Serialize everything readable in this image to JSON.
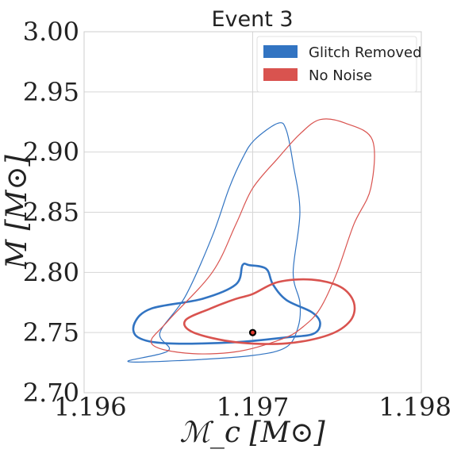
{
  "chart_data": {
    "type": "contour",
    "title": "Event 3",
    "xlabel": "ℳ_c [M⊙]",
    "ylabel": "M [M⊙]",
    "xlim": [
      1.196,
      1.198
    ],
    "ylim": [
      2.7,
      3.0
    ],
    "xticks": [
      "1.196",
      "1.197",
      "1.198"
    ],
    "yticks": [
      "2.70",
      "2.75",
      "2.80",
      "2.85",
      "2.90",
      "2.95",
      "3.00"
    ],
    "grid": true,
    "legend_position": "top-right",
    "series": [
      {
        "name": "Glitch Removed",
        "color": "#3274c2",
        "contours": [
          {
            "level": "outer",
            "points": [
              [
                1.19715,
                2.924
              ],
              [
                1.1972,
                2.918
              ],
              [
                1.19724,
                2.89
              ],
              [
                1.19728,
                2.85
              ],
              [
                1.19724,
                2.8
              ],
              [
                1.19728,
                2.775
              ],
              [
                1.19727,
                2.755
              ],
              [
                1.1972,
                2.738
              ],
              [
                1.197,
                2.731
              ],
              [
                1.1966,
                2.727
              ],
              [
                1.19626,
                2.726
              ],
              [
                1.1965,
                2.735
              ],
              [
                1.19645,
                2.75
              ],
              [
                1.1966,
                2.78
              ],
              [
                1.19676,
                2.83
              ],
              [
                1.19686,
                2.87
              ],
              [
                1.19694,
                2.895
              ],
              [
                1.19701,
                2.91
              ],
              [
                1.19715,
                2.924
              ]
            ]
          },
          {
            "level": "inner",
            "points": [
              [
                1.19694,
                2.806
              ],
              [
                1.1969,
                2.79
              ],
              [
                1.1967,
                2.778
              ],
              [
                1.1964,
                2.77
              ],
              [
                1.1963,
                2.758
              ],
              [
                1.19632,
                2.746
              ],
              [
                1.1965,
                2.741
              ],
              [
                1.1969,
                2.742
              ],
              [
                1.1972,
                2.746
              ],
              [
                1.19736,
                2.749
              ],
              [
                1.1974,
                2.758
              ],
              [
                1.19735,
                2.767
              ],
              [
                1.1972,
                2.777
              ],
              [
                1.19712,
                2.79
              ],
              [
                1.19708,
                2.803
              ],
              [
                1.19698,
                2.806
              ],
              [
                1.19694,
                2.806
              ]
            ]
          }
        ]
      },
      {
        "name": "No Noise",
        "color": "#d9534f",
        "contours": [
          {
            "level": "outer",
            "points": [
              [
                1.1974,
                2.927
              ],
              [
                1.19755,
                2.924
              ],
              [
                1.19771,
                2.91
              ],
              [
                1.1977,
                2.87
              ],
              [
                1.1976,
                2.84
              ],
              [
                1.1975,
                2.8
              ],
              [
                1.1974,
                2.77
              ],
              [
                1.1973,
                2.755
              ],
              [
                1.19718,
                2.745
              ],
              [
                1.1969,
                2.734
              ],
              [
                1.1966,
                2.733
              ],
              [
                1.1964,
                2.741
              ],
              [
                1.1965,
                2.76
              ],
              [
                1.19676,
                2.8
              ],
              [
                1.1969,
                2.84
              ],
              [
                1.197,
                2.87
              ],
              [
                1.19715,
                2.895
              ],
              [
                1.19728,
                2.915
              ],
              [
                1.1974,
                2.927
              ]
            ]
          },
          {
            "level": "inner",
            "points": [
              [
                1.197,
                2.782
              ],
              [
                1.19715,
                2.792
              ],
              [
                1.19735,
                2.794
              ],
              [
                1.19752,
                2.788
              ],
              [
                1.1976,
                2.775
              ],
              [
                1.19758,
                2.76
              ],
              [
                1.19745,
                2.748
              ],
              [
                1.1972,
                2.741
              ],
              [
                1.1969,
                2.742
              ],
              [
                1.19665,
                2.75
              ],
              [
                1.1966,
                2.76
              ],
              [
                1.19675,
                2.77
              ],
              [
                1.1969,
                2.778
              ],
              [
                1.197,
                2.782
              ]
            ]
          }
        ]
      }
    ],
    "markers": [
      {
        "x": 1.197,
        "y": 2.75
      }
    ]
  }
}
